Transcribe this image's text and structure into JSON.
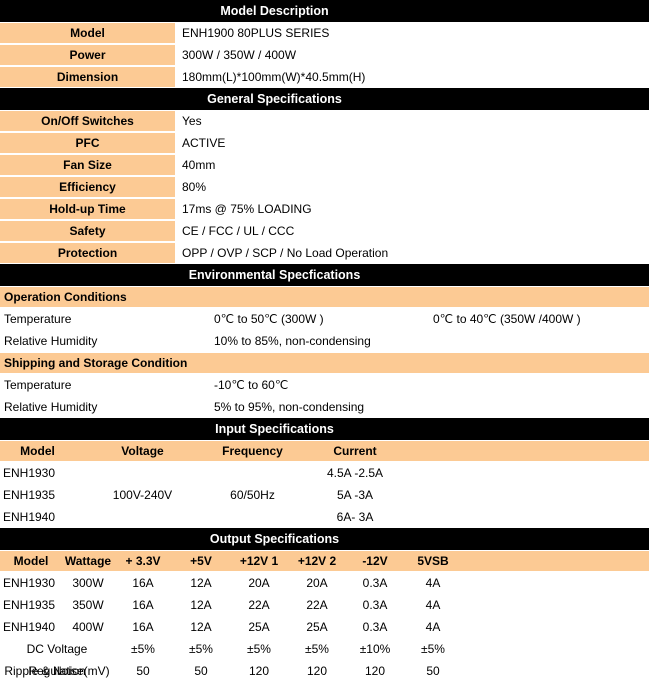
{
  "colors": {
    "header_bg": "#000000",
    "header_text": "#FFFFFF",
    "accent": "#FCCA94",
    "row_bg": "#FFFFFF",
    "text": "#000000"
  },
  "model_description": {
    "title": "Model Description",
    "rows": [
      {
        "label": "Model",
        "value": "ENH1900 80PLUS SERIES"
      },
      {
        "label": "Power",
        "value": "300W / 350W / 400W"
      },
      {
        "label": "Dimension",
        "value": "180mm(L)*100mm(W)*40.5mm(H)"
      }
    ]
  },
  "general_specifications": {
    "title": "General Specifications",
    "rows": [
      {
        "label": "On/Off Switches",
        "value": "Yes"
      },
      {
        "label": "PFC",
        "value": "ACTIVE"
      },
      {
        "label": "Fan Size",
        "value": "40mm"
      },
      {
        "label": "Efficiency",
        "value": "80%"
      },
      {
        "label": "Hold-up Time",
        "value": "17ms @ 75% LOADING"
      },
      {
        "label": "Safety",
        "value": "CE / FCC / UL / CCC"
      },
      {
        "label": "Protection",
        "value": "OPP / OVP / SCP / No Load Operation"
      }
    ]
  },
  "environmental_specifications": {
    "title": "Environmental Specfications",
    "groups": [
      {
        "heading": "Operation Conditions",
        "rows": [
          {
            "label": "Temperature",
            "value1": "0℃ to 50℃ (300W )",
            "value2": "0℃ to 40℃ (350W /400W )"
          },
          {
            "label": "Relative Humidity",
            "value1": "10% to 85%, non-condensing",
            "value2": ""
          }
        ]
      },
      {
        "heading": "Shipping and Storage Condition",
        "rows": [
          {
            "label": "Temperature",
            "value1": "-10℃ to 60℃",
            "value2": ""
          },
          {
            "label": "Relative Humidity",
            "value1": "5% to 95%, non-condensing",
            "value2": ""
          }
        ]
      }
    ]
  },
  "input_specifications": {
    "title": "Input Specifications",
    "columns": [
      "Model",
      "Voltage",
      "Frequency",
      "Current"
    ],
    "rows": [
      {
        "model": "ENH1930",
        "voltage": "",
        "frequency": "",
        "current": "4.5A -2.5A"
      },
      {
        "model": "ENH1935",
        "voltage": "100V-240V",
        "frequency": "60/50Hz",
        "current": "5A -3A"
      },
      {
        "model": "ENH1940",
        "voltage": "",
        "frequency": "",
        "current": "6A- 3A"
      }
    ]
  },
  "output_specifications": {
    "title": "Output Specifications",
    "columns": [
      "Model",
      "Wattage",
      "+ 3.3V",
      "+5V",
      "+12V 1",
      "+12V 2",
      "-12V",
      "5VSB"
    ],
    "rows": [
      {
        "model": "ENH1930",
        "wattage": "300W",
        "v33": "16A",
        "v5": "12A",
        "v12_1": "20A",
        "v12_2": "20A",
        "v12n": "0.3A",
        "v5sb": "4A"
      },
      {
        "model": "ENH1935",
        "wattage": "350W",
        "v33": "16A",
        "v5": "12A",
        "v12_1": "22A",
        "v12_2": "22A",
        "v12n": "0.3A",
        "v5sb": "4A"
      },
      {
        "model": "ENH1940",
        "wattage": "400W",
        "v33": "16A",
        "v5": "12A",
        "v12_1": "25A",
        "v12_2": "25A",
        "v12n": "0.3A",
        "v5sb": "4A"
      }
    ],
    "footer_rows": [
      {
        "label": "DC Voltage Regulation",
        "values": [
          "±5%",
          "±5%",
          "±5%",
          "±5%",
          "±10%",
          "±5%"
        ]
      },
      {
        "label": "Ripple & Noise(mV)",
        "values": [
          "50",
          "50",
          "120",
          "120",
          "120",
          "50"
        ]
      }
    ]
  }
}
